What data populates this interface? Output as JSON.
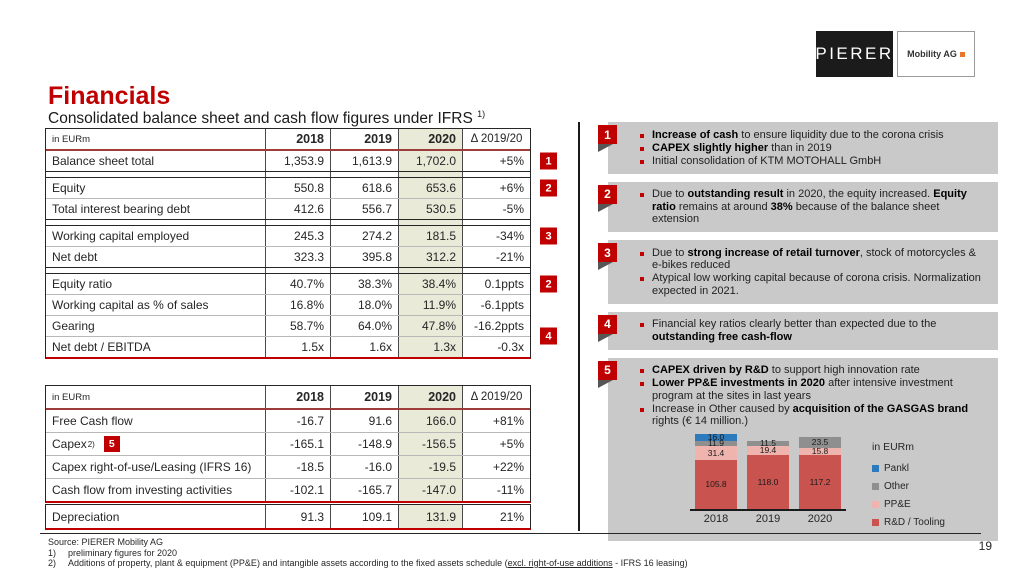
{
  "title": "Financials",
  "subtitle": {
    "text": "Consolidated balance sheet and cash flow figures under IFRS",
    "sup": "1)"
  },
  "logo": {
    "primary": "PIERER",
    "secondary": "Mobility AG"
  },
  "colors": {
    "accent_red": "#c00000",
    "note_box_gray": "#c9c9c9",
    "column_2020_highlight": "#eaead9",
    "logo_orange": "#e8762b"
  },
  "table1": {
    "header": {
      "unit": "in EURm",
      "cols": [
        "2018",
        "2019",
        "2020",
        "Δ 2019/20"
      ]
    },
    "rows": [
      {
        "label": "Balance sheet total",
        "values": [
          "1,353.9",
          "1,613.9",
          "1,702.0",
          "+5%"
        ],
        "marker": "1"
      },
      {
        "spacer": true
      },
      {
        "label": "Equity",
        "values": [
          "550.8",
          "618.6",
          "653.6",
          "+6%"
        ],
        "marker": "2"
      },
      {
        "label": "Total interest bearing debt",
        "values": [
          "412.6",
          "556.7",
          "530.5",
          "-5%"
        ]
      },
      {
        "spacer": true
      },
      {
        "label": "Working capital employed",
        "values": [
          "245.3",
          "274.2",
          "181.5",
          "-34%"
        ],
        "marker": "3"
      },
      {
        "label": "Net debt",
        "values": [
          "323.3",
          "395.8",
          "312.2",
          "-21%"
        ]
      },
      {
        "spacer": true
      },
      {
        "label": "Equity ratio",
        "values": [
          "40.7%",
          "38.3%",
          "38.4%",
          "0.1ppts"
        ],
        "marker": "2"
      },
      {
        "label": "Working capital as % of sales",
        "values": [
          "16.8%",
          "18.0%",
          "11.9%",
          "-6.1ppts"
        ]
      },
      {
        "label": "Gearing",
        "values": [
          "58.7%",
          "64.0%",
          "47.8%",
          "-16.2ppts"
        ],
        "marker": "4",
        "marker_pos": "low"
      },
      {
        "label": "Net debt / EBITDA",
        "values": [
          "1.5x",
          "1.6x",
          "1.3x",
          "-0.3x"
        ]
      }
    ]
  },
  "table2": {
    "header": {
      "unit": "in EURm",
      "cols": [
        "2018",
        "2019",
        "2020",
        "Δ 2019/20"
      ]
    },
    "rows": [
      {
        "label": "Free Cash flow",
        "values": [
          "-16.7",
          "91.6",
          "166.0",
          "+81%"
        ]
      },
      {
        "label": "Capex",
        "sup": "2)",
        "inline_marker": "5",
        "values": [
          "-165.1",
          "-148.9",
          "-156.5",
          "+5%"
        ]
      },
      {
        "label": "Capex right-of-use/Leasing (IFRS 16)",
        "values": [
          "-18.5",
          "-16.0",
          "-19.5",
          "+22%"
        ]
      },
      {
        "label": "Cash flow from investing activities",
        "values": [
          "-102.1",
          "-165.7",
          "-147.0",
          "-11%"
        ]
      }
    ]
  },
  "table3": {
    "rows": [
      {
        "label": "Depreciation",
        "values": [
          "91.3",
          "109.1",
          "131.9",
          "21%"
        ]
      }
    ]
  },
  "notes": [
    {
      "num": "1",
      "bullets": [
        [
          {
            "t": "Increase of cash",
            "b": true
          },
          {
            "t": " to ensure liquidity due to the corona crisis"
          }
        ],
        [
          {
            "t": "CAPEX slightly higher",
            "b": true
          },
          {
            "t": " than in 2019"
          }
        ],
        [
          {
            "t": "Initial consolidation of KTM MOTOHALL GmbH"
          }
        ]
      ]
    },
    {
      "num": "2",
      "bullets": [
        [
          {
            "t": "Due to "
          },
          {
            "t": "outstanding result",
            "b": true
          },
          {
            "t": " in 2020, the equity increased. "
          },
          {
            "t": "Equity ratio",
            "b": true
          },
          {
            "t": " remains at around "
          },
          {
            "t": "38%",
            "b": true
          },
          {
            "t": " because of the balance sheet extension"
          }
        ]
      ]
    },
    {
      "num": "3",
      "bullets": [
        [
          {
            "t": "Due to "
          },
          {
            "t": "strong increase of retail turnover",
            "b": true
          },
          {
            "t": ", stock of motorcycles & e-bikes reduced"
          }
        ],
        [
          {
            "t": "Atypical low working capital because of corona crisis. Normalization expected in 2021."
          }
        ]
      ]
    },
    {
      "num": "4",
      "bullets": [
        [
          {
            "t": "Financial key ratios clearly better than expected due to the "
          },
          {
            "t": "outstanding free cash-flow",
            "b": true
          }
        ]
      ]
    },
    {
      "num": "5",
      "has_chart": true,
      "bullets": [
        [
          {
            "t": "CAPEX driven by R&D",
            "b": true
          },
          {
            "t": " to support high innovation rate"
          }
        ],
        [
          {
            "t": "Lower PP&E investments in 2020",
            "b": true
          },
          {
            "t": " after intensive investment program at the sites in last years"
          }
        ],
        [
          {
            "t": "Increase in Other caused by "
          },
          {
            "t": "acquisition of the GASGAS brand",
            "b": true
          },
          {
            "t": " rights (€ 14 million.)"
          }
        ]
      ]
    }
  ],
  "chart_data": {
    "type": "bar",
    "stacked": true,
    "categories": [
      "2018",
      "2019",
      "2020"
    ],
    "series": [
      {
        "name": "R&D / Tooling",
        "color": "#c9534f",
        "values": [
          105.8,
          118.0,
          117.2
        ]
      },
      {
        "name": "PP&E",
        "color": "#f0b4ae",
        "values": [
          31.4,
          19.4,
          15.8
        ]
      },
      {
        "name": "Other",
        "color": "#8f8f8f",
        "values": [
          11.9,
          11.5,
          23.5
        ]
      },
      {
        "name": "Pankl",
        "color": "#2d7abc",
        "values": [
          16.0,
          0,
          0
        ]
      }
    ],
    "totals": [
      165.1,
      148.9,
      156.5
    ],
    "legend_title": "in EURm",
    "legend_order": [
      "Pankl",
      "Other",
      "PP&E",
      "R&D / Tooling"
    ],
    "legend_position": "right",
    "grid": false
  },
  "footer": {
    "source": "Source: PIERER Mobility AG",
    "note1_num": "1)",
    "note1": "preliminary figures for 2020",
    "note2_num": "2)",
    "note2_pre": "Additions of property, plant & equipment (PP&E) and intangible assets according to the fixed assets schedule (",
    "note2_underline": "excl. right-of-use additions",
    "note2_post": " - IFRS 16 leasing)",
    "page": "19"
  }
}
